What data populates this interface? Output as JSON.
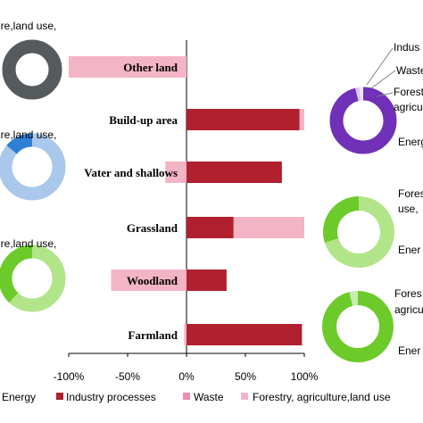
{
  "chart_data": {
    "type": "bar",
    "stacked": true,
    "categories": [
      "Other land",
      "Build-up area",
      "Vater and shallows",
      "Grassland",
      "Woodland",
      "Farmland"
    ],
    "xlim": [
      -100,
      100
    ],
    "xticks": [
      "-100%",
      "-50%",
      "0%",
      "50%",
      "100%"
    ],
    "series": [
      {
        "name": "Industry processes",
        "color": "#b0202e",
        "values": [
          0,
          96,
          81,
          40,
          34,
          98
        ]
      },
      {
        "name": "Waste",
        "color": "#ee8fb0",
        "values": [
          0,
          0,
          0,
          0,
          0,
          0
        ]
      },
      {
        "name": "Forestry, agriculture,land use",
        "color": "#f3b4c6",
        "values": [
          -100,
          4,
          -18,
          60,
          -64,
          -2
        ]
      }
    ],
    "legend_items": [
      "Energy",
      "Industry processes",
      "Waste",
      "Forestry, agriculture,land use"
    ],
    "legend_position": "bottom",
    "donuts": [
      {
        "side": "left",
        "ring_color": "#555a5c",
        "labels": [
          "ure,land use,"
        ],
        "shares": [
          1.0
        ],
        "colors": [
          "#555a5c"
        ]
      },
      {
        "side": "left",
        "ring_color": "#a9c8ec",
        "labels": [
          "ure,land use,"
        ],
        "shares": [
          0.86,
          0.14
        ],
        "colors": [
          "#a9c8ec",
          "#2f7fd4"
        ]
      },
      {
        "side": "left",
        "ring_color": "#a8e07a",
        "labels": [
          "ure,land use,"
        ],
        "shares": [
          0.62,
          0.38
        ],
        "colors": [
          "#b2e58a",
          "#6ccb2a"
        ]
      },
      {
        "side": "right",
        "ring_color": "#7030b8",
        "labels": [
          "Indus",
          "Waste",
          "Forest",
          "agricu",
          "Energ"
        ],
        "shares": [
          0.96,
          0.02,
          0.02
        ],
        "colors": [
          "#7030b8",
          "#d8c8ee",
          "#efe6f8"
        ]
      },
      {
        "side": "right",
        "ring_color": "#a8e07a",
        "labels": [
          "Fores",
          "use,",
          "Ener"
        ],
        "shares": [
          0.7,
          0.3
        ],
        "colors": [
          "#b2e58a",
          "#6ccb2a"
        ]
      },
      {
        "side": "right",
        "ring_color": "#6ccb2a",
        "labels": [
          "Fores",
          "agricu",
          "Ener"
        ],
        "shares": [
          0.96,
          0.04
        ],
        "colors": [
          "#6ccb2a",
          "#c7ecb0"
        ]
      }
    ]
  }
}
